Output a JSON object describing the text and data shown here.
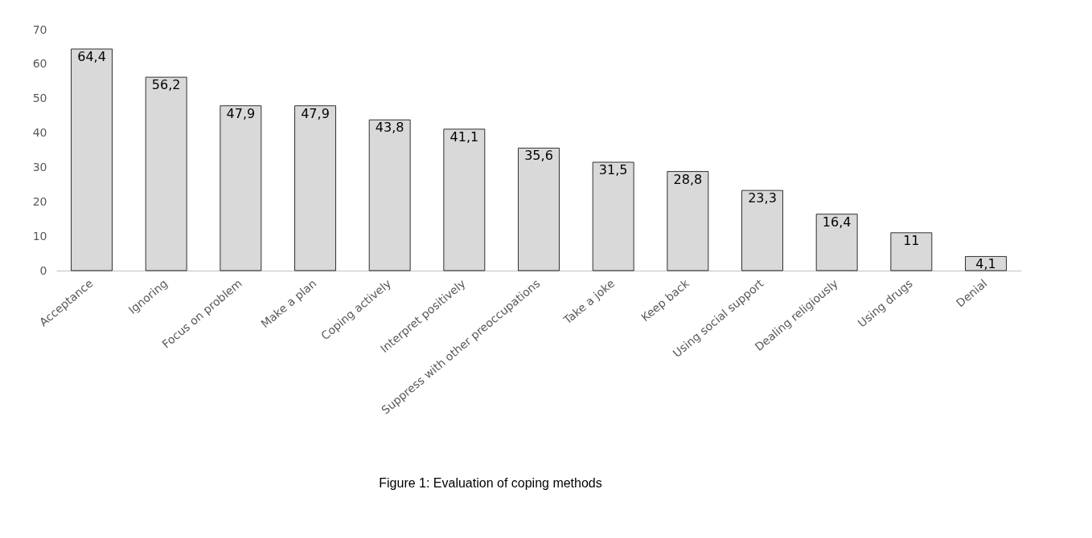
{
  "chart_data": {
    "type": "bar",
    "categories": [
      "Acceptance",
      "Ignoring",
      "Focus on problem",
      "Make a plan",
      "Coping actively",
      "Interpret positively",
      "Suppress with other preoccupations",
      "Take a joke",
      "Keep back",
      "Using social support",
      "Dealing religiously",
      "Using drugs",
      "Denial"
    ],
    "values": [
      64.4,
      56.2,
      47.9,
      47.9,
      43.8,
      41.1,
      35.6,
      31.5,
      28.8,
      23.3,
      16.4,
      11,
      4.1
    ],
    "value_labels": [
      "64,4",
      "56,2",
      "47,9",
      "47,9",
      "43,8",
      "41,1",
      "35,6",
      "31,5",
      "28,8",
      "23,3",
      "16,4",
      "11",
      "4,1"
    ],
    "color": "#d9d9d9",
    "ylim": [
      0,
      70
    ],
    "yticks": [
      0,
      10,
      20,
      30,
      40,
      50,
      60,
      70
    ],
    "grid": false,
    "annotations": [
      "Figure 1: Evaluation of coping methods"
    ]
  }
}
